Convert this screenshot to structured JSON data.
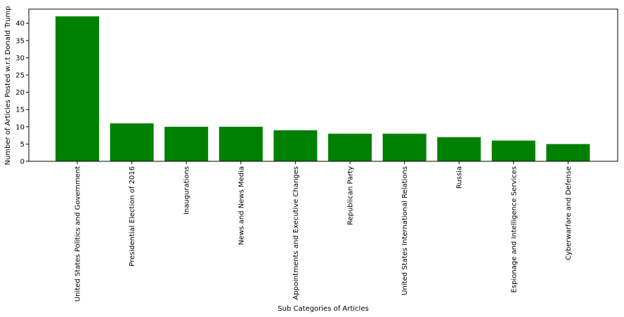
{
  "chart_data": {
    "type": "bar",
    "title": "",
    "xlabel": "Sub Categories of Articles",
    "ylabel": "Number of Articles Posted w.r.t Donald Trump",
    "categories": [
      "United States Politics and Government",
      "Presidential Election of 2016",
      "Inaugurations",
      "News and News Media",
      "Appointments and Executive Changes",
      "Republican Party",
      "United States International Relations",
      "Russia",
      "Espionage and Intelligence Services",
      "Cyberwarfare and Defense"
    ],
    "values": [
      42,
      11,
      10,
      10,
      9,
      8,
      8,
      7,
      6,
      5
    ],
    "ylim": [
      0,
      44.1
    ],
    "yticks": [
      0,
      5,
      10,
      15,
      20,
      25,
      30,
      35,
      40
    ],
    "bar_color": "#008000",
    "grid": false,
    "legend": "none"
  }
}
